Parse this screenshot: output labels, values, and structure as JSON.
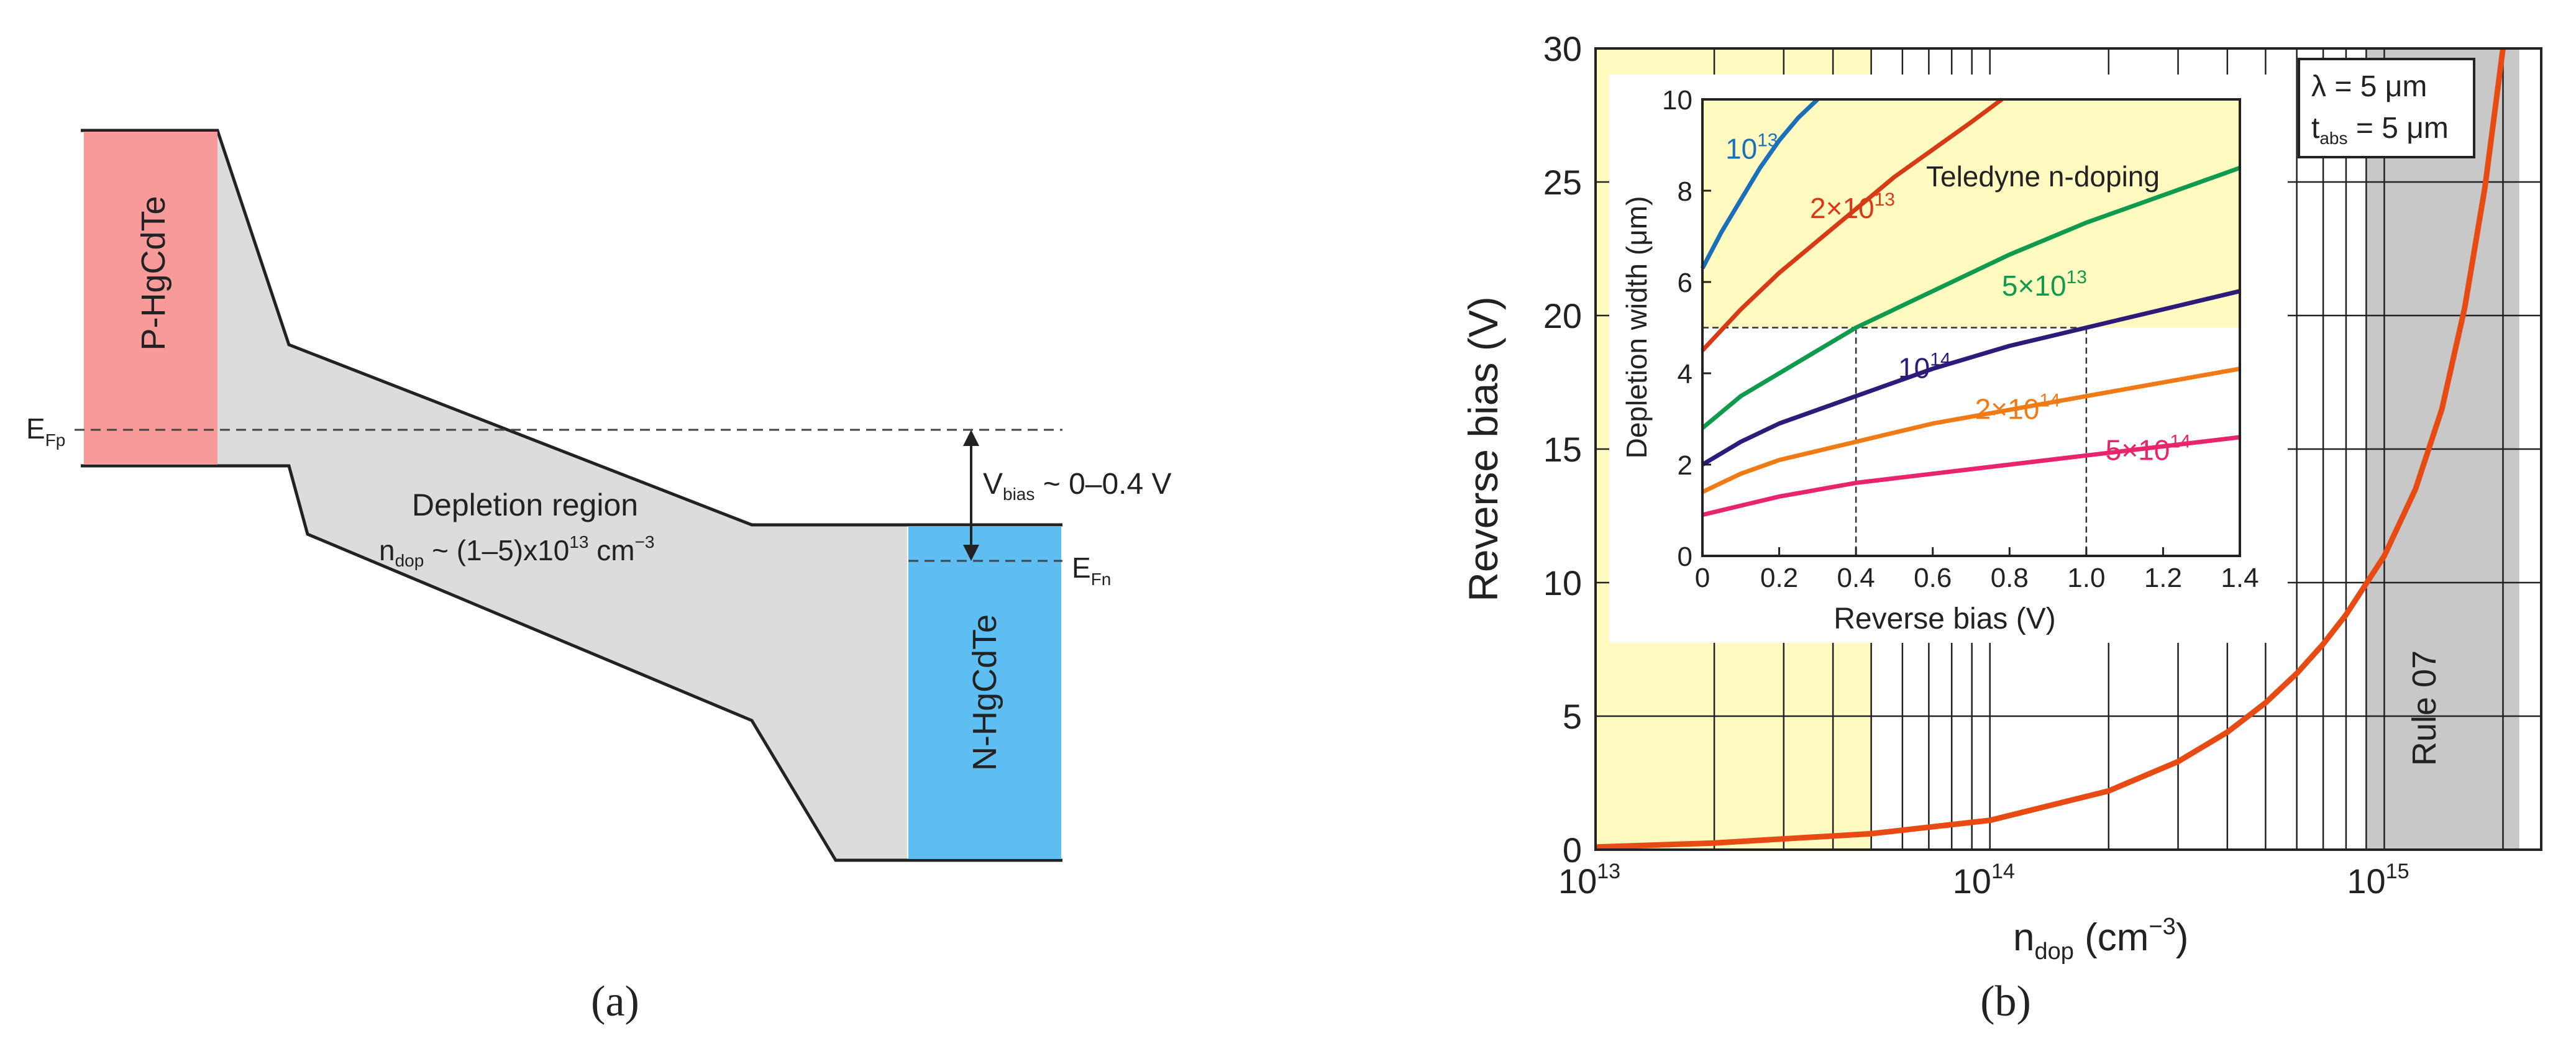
{
  "panel_a": {
    "caption": "(a)",
    "p_label": "P-HgCdTe",
    "n_label": "N-HgCdTe",
    "efp_main": "E",
    "efp_sub": "Fp",
    "efn_main": "E",
    "efn_sub": "Fn",
    "region_title": "Depletion region",
    "ndop_main": "n",
    "ndop_sub": "dop",
    "ndop_mid": " ~ (1–5)x10",
    "ndop_exp": "13",
    "ndop_unit": " cm",
    "ndop_unit_exp": "−3",
    "vbias_main": "V",
    "vbias_sub": "bias",
    "vbias_rest": " ~ 0–0.4 V",
    "colors": {
      "p_region": "#f89a9a",
      "n_region": "#5ebdf1",
      "depletion": "#dcdcdc"
    }
  },
  "panel_b": {
    "caption": "(b)",
    "ylabel": "Reverse bias (V)",
    "xlabel_main": "n",
    "xlabel_sub": "dop",
    "xlabel_unit": " (cm",
    "xlabel_exp": "−3",
    "xlabel_close": ")",
    "yticks": [
      "0",
      "5",
      "10",
      "15",
      "20",
      "25",
      "30"
    ],
    "xtick_base": "10",
    "xtick_exps": [
      "13",
      "14",
      "15"
    ],
    "legend_line1": "λ = 5 μm",
    "legend_line2_main": "t",
    "legend_line2_sub": "abs",
    "legend_line2_rest": " = 5 μm",
    "rule07_label": "Rule 07",
    "colors": {
      "teledyne_band": "#fffbc0",
      "rule07_band": "#c8c8c8",
      "curve": "#e84a14"
    }
  },
  "inset": {
    "xlabel": "Reverse bias (V)",
    "ylabel": "Depletion width (μm)",
    "xticks": [
      "0",
      "0.2",
      "0.4",
      "0.6",
      "0.8",
      "1.0",
      "1.2",
      "1.4"
    ],
    "yticks": [
      "0",
      "2",
      "4",
      "6",
      "8",
      "10"
    ],
    "band_label": "Teledyne n-doping",
    "ref_line_y": 5,
    "ref_line_x": [
      0.4,
      1.0
    ]
  },
  "chart_data": [
    {
      "type": "line",
      "xlabel": "n_dop (cm^-3)",
      "ylabel": "Reverse bias (V)",
      "xscale": "log",
      "xlim": [
        10000000000000.0,
        2500000000000000.0
      ],
      "ylim": [
        0,
        30
      ],
      "grid": true,
      "legend": "top-right",
      "annotations": [
        "λ = 5 μm",
        "t_abs = 5 μm",
        "Rule 07"
      ],
      "bands": [
        {
          "label": "",
          "x_range": [
            10000000000000.0,
            50000000000000.0
          ],
          "color": "#fffbc0"
        },
        {
          "label": "Rule 07",
          "x_range": [
            900000000000000.0,
            2200000000000000.0
          ],
          "color": "#c8c8c8"
        }
      ],
      "series": [
        {
          "color": "#e84a14",
          "x": [
            10000000000000.0,
            20000000000000.0,
            50000000000000.0,
            100000000000000.0,
            200000000000000.0,
            300000000000000.0,
            400000000000000.0,
            500000000000000.0,
            600000000000000.0,
            700000000000000.0,
            800000000000000.0,
            1000000000000000.0,
            1200000000000000.0,
            1400000000000000.0,
            1600000000000000.0,
            1800000000000000.0,
            2000000000000000.0
          ],
          "y": [
            0.1,
            0.25,
            0.6,
            1.1,
            2.2,
            3.3,
            4.4,
            5.5,
            6.6,
            7.7,
            8.8,
            11.0,
            13.5,
            16.5,
            20.3,
            24.8,
            30.0
          ]
        }
      ]
    },
    {
      "type": "line",
      "xlabel": "Reverse bias (V)",
      "ylabel": "Depletion width (μm)",
      "xlim": [
        0,
        1.4
      ],
      "ylim": [
        0,
        10
      ],
      "grid": false,
      "series": [
        {
          "name": "10^13",
          "label_main": "10",
          "label_exp": "13",
          "color": "#1a6fb8",
          "x": [
            0,
            0.05,
            0.1,
            0.15,
            0.2,
            0.25,
            0.3
          ],
          "y": [
            6.3,
            7.1,
            7.8,
            8.5,
            9.1,
            9.6,
            10.0
          ]
        },
        {
          "name": "2×10^13",
          "label_main": "2×10",
          "label_exp": "13",
          "color": "#d93a16",
          "x": [
            0,
            0.1,
            0.2,
            0.3,
            0.4,
            0.5,
            0.6,
            0.7,
            0.78
          ],
          "y": [
            4.5,
            5.4,
            6.2,
            6.9,
            7.6,
            8.3,
            8.9,
            9.5,
            10.0
          ]
        },
        {
          "name": "5×10^13",
          "label_main": "5×10",
          "label_exp": "13",
          "color": "#109a4d",
          "x": [
            0,
            0.1,
            0.2,
            0.4,
            0.6,
            0.8,
            1.0,
            1.2,
            1.4
          ],
          "y": [
            2.8,
            3.5,
            4.0,
            5.0,
            5.8,
            6.6,
            7.3,
            7.9,
            8.5
          ]
        },
        {
          "name": "10^14",
          "label_main": "10",
          "label_exp": "14",
          "color": "#2e1a78",
          "x": [
            0,
            0.1,
            0.2,
            0.4,
            0.6,
            0.8,
            1.0,
            1.2,
            1.4
          ],
          "y": [
            2.0,
            2.5,
            2.9,
            3.5,
            4.1,
            4.6,
            5.0,
            5.4,
            5.8
          ]
        },
        {
          "name": "2×10^14",
          "label_main": "2×10",
          "label_exp": "14",
          "color": "#f07a14",
          "x": [
            0,
            0.1,
            0.2,
            0.4,
            0.6,
            0.8,
            1.0,
            1.2,
            1.4
          ],
          "y": [
            1.4,
            1.8,
            2.1,
            2.5,
            2.9,
            3.2,
            3.5,
            3.8,
            4.1
          ]
        },
        {
          "name": "5×10^14",
          "label_main": "5×10",
          "label_exp": "14",
          "color": "#e8246c",
          "x": [
            0,
            0.1,
            0.2,
            0.4,
            0.6,
            0.8,
            1.0,
            1.2,
            1.4
          ],
          "y": [
            0.9,
            1.1,
            1.3,
            1.6,
            1.8,
            2.0,
            2.2,
            2.4,
            2.6
          ]
        }
      ]
    }
  ]
}
